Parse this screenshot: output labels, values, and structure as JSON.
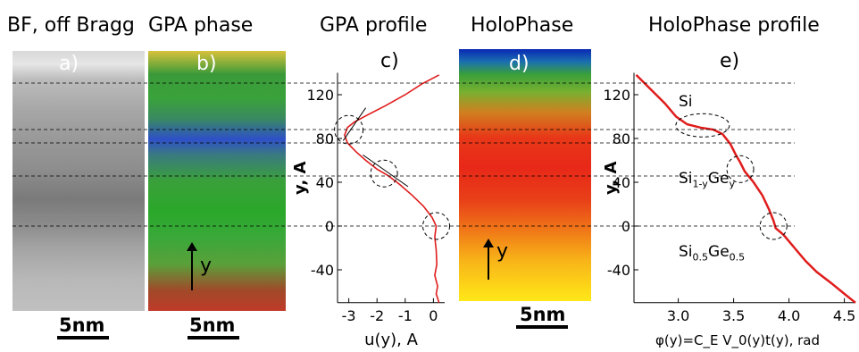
{
  "titles": {
    "bf": "BF, off Bragg",
    "gpa_phase": "GPA phase",
    "gpa_profile": "GPA profile",
    "holophase": "HoloPhase",
    "holophase_profile": "HoloPhase profile"
  },
  "panel_labels": {
    "a": "a)",
    "b": "b)",
    "c": "c)",
    "d": "d)",
    "e": "e)"
  },
  "scale_bars": {
    "a": "5nm",
    "b": "5nm",
    "d": "5nm"
  },
  "arrows": {
    "b": "y",
    "d": "y"
  },
  "layers": {
    "si": "Si",
    "si1y_base": "Si",
    "si1y_sub": "1-y",
    "ge1_base": "Ge",
    "ge1_sub": "y",
    "si05_base": "Si",
    "si05_sub": "0.5",
    "ge05_base": "Ge",
    "ge05_sub": "0.5"
  },
  "colors": {
    "curve": "#e01c1c"
  },
  "chart_data": [
    {
      "type": "line",
      "title": "GPA profile",
      "xlabel": "u(y), A",
      "ylabel": "y, A",
      "xlim": [
        -3.4,
        0.4
      ],
      "ylim": [
        -70,
        140
      ],
      "xticks": [
        -3,
        -2,
        -1,
        0
      ],
      "yticks": [
        120,
        80,
        40,
        0,
        -40
      ],
      "xtick_labels": [
        "-3",
        "-2",
        "-1",
        "0"
      ],
      "ytick_labels": [
        "120",
        "80",
        "40",
        "0",
        "-40"
      ],
      "series": [
        {
          "x": [
            0.2,
            -0.4,
            -1.0,
            -1.7,
            -2.3,
            -2.8,
            -3.05,
            -3.15,
            -3.05,
            -2.75,
            -2.4,
            -2.0,
            -1.6,
            -1.2,
            -0.75,
            -0.35,
            -0.05,
            0.1,
            0.05,
            0.1,
            0.12,
            0.05,
            0.15,
            0.1,
            0.2
          ],
          "y": [
            138,
            130,
            120,
            110,
            102,
            95,
            90,
            83,
            76,
            68,
            60,
            52,
            46,
            38,
            28,
            18,
            8,
            0,
            -10,
            -22,
            -35,
            -45,
            -55,
            -62,
            -70
          ]
        }
      ],
      "annotations": [
        "circle at (-3, 88)",
        "circle at (-1.7, 50)",
        "circle at (0.1, 0)"
      ]
    },
    {
      "type": "line",
      "title": "HoloPhase profile",
      "xlabel": "φ(y)=C_E V_0(y)t(y), rad",
      "ylabel": "y, A",
      "xlim": [
        2.6,
        4.6
      ],
      "ylim": [
        -70,
        140
      ],
      "xticks": [
        3.0,
        3.5,
        4.0,
        4.5
      ],
      "yticks": [
        120,
        80,
        40,
        0,
        -40
      ],
      "xtick_labels": [
        "3.0",
        "3.5",
        "4.0",
        "4.5"
      ],
      "ytick_labels": [
        "120",
        "80",
        "40",
        "0",
        "-40"
      ],
      "series": [
        {
          "x": [
            2.62,
            2.75,
            2.88,
            2.98,
            3.08,
            3.2,
            3.32,
            3.4,
            3.47,
            3.52,
            3.56,
            3.6,
            3.68,
            3.76,
            3.82,
            3.86,
            3.88,
            3.95,
            4.05,
            4.15,
            4.25,
            4.38,
            4.5,
            4.6
          ],
          "y": [
            138,
            125,
            112,
            100,
            93,
            90,
            88,
            84,
            75,
            65,
            58,
            50,
            40,
            28,
            15,
            5,
            -2,
            -8,
            -20,
            -32,
            -42,
            -52,
            -62,
            -70
          ]
        }
      ],
      "annotations": [
        "ellipse at (3.2, 92)",
        "circle at (3.55, 52)",
        "circle at (3.86, 0)"
      ]
    }
  ]
}
